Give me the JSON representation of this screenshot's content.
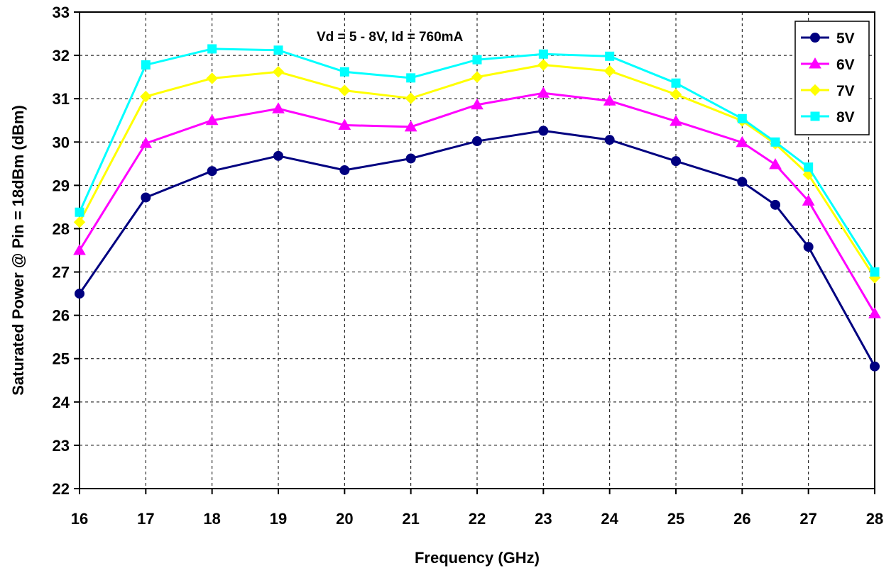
{
  "chart_data": {
    "type": "line",
    "title": "",
    "annotation": "Vd = 5 - 8V, Id = 760mA",
    "xlabel": "Frequency (GHz)",
    "ylabel": "Saturated Power @ Pin = 18dBm (dBm)",
    "xlim": [
      16,
      28
    ],
    "ylim": [
      22,
      33
    ],
    "xticks": [
      16,
      17,
      18,
      19,
      20,
      21,
      22,
      23,
      24,
      25,
      26,
      27,
      28
    ],
    "yticks": [
      22,
      23,
      24,
      25,
      26,
      27,
      28,
      29,
      30,
      31,
      32,
      33
    ],
    "grid": true,
    "legend_position": "top-right",
    "x": [
      16,
      17,
      18,
      19,
      20,
      21,
      22,
      23,
      24,
      25,
      26,
      26.5,
      27,
      28
    ],
    "series": [
      {
        "name": "5V",
        "color": "#000080",
        "marker": "circle",
        "values": [
          26.5,
          28.72,
          29.33,
          29.68,
          29.35,
          29.62,
          30.02,
          30.26,
          30.05,
          29.56,
          29.08,
          28.55,
          27.58,
          24.82
        ]
      },
      {
        "name": "6V",
        "color": "#ff00ff",
        "marker": "triangle",
        "values": [
          27.5,
          29.97,
          30.5,
          30.77,
          30.39,
          30.35,
          30.86,
          31.13,
          30.95,
          30.48,
          29.99,
          29.48,
          28.64,
          26.04
        ]
      },
      {
        "name": "7V",
        "color": "#ffff00",
        "marker": "diamond",
        "values": [
          28.15,
          31.05,
          31.47,
          31.62,
          31.19,
          31.01,
          31.5,
          31.78,
          31.64,
          31.1,
          30.49,
          29.96,
          29.25,
          26.87
        ]
      },
      {
        "name": "8V",
        "color": "#00ffff",
        "marker": "square",
        "values": [
          28.38,
          31.78,
          32.15,
          32.12,
          31.62,
          31.48,
          31.9,
          32.03,
          31.98,
          31.36,
          30.54,
          30.0,
          29.42,
          27.0
        ]
      }
    ]
  }
}
